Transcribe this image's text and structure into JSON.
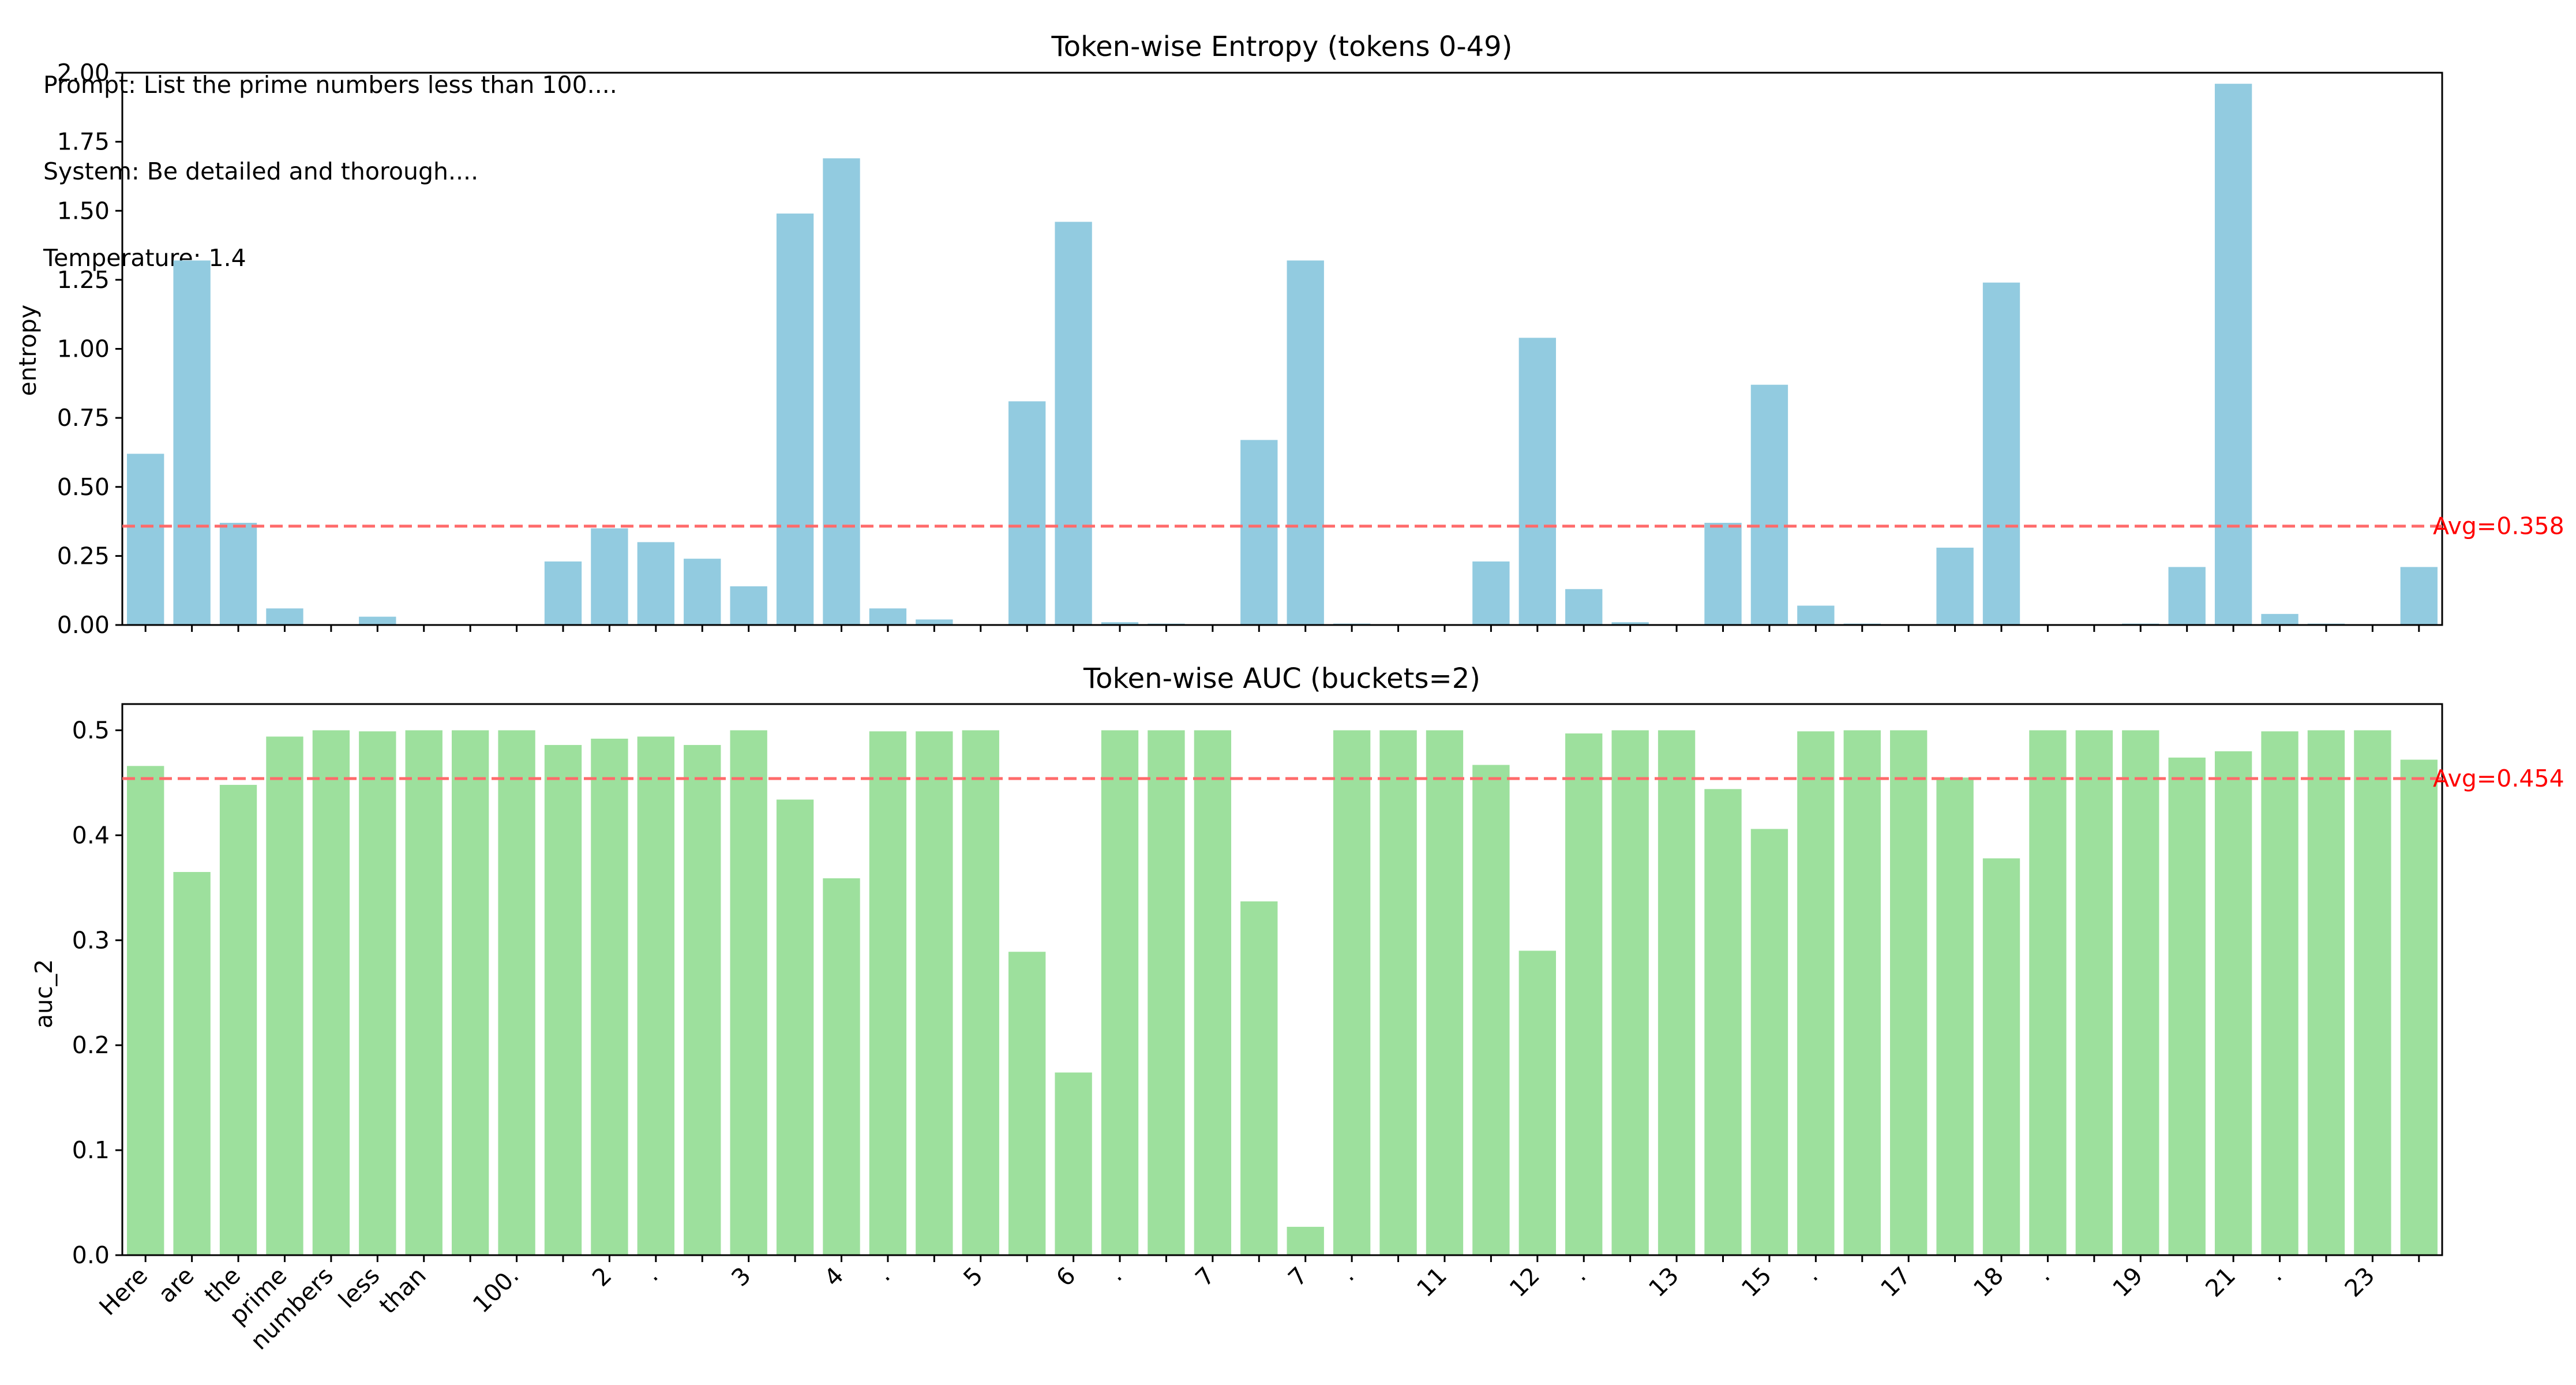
{
  "info": {
    "prompt": "Prompt: List the prime numbers less than 100....",
    "system": "System: Be detailed and thorough....",
    "temperature": "Temperature: 1.4"
  },
  "colors": {
    "entropy_bar": "#92cbe0",
    "auc_bar": "#9de09d",
    "avg_line": "#ff6b6b",
    "avg_text": "#ff0000"
  },
  "chart_data": [
    {
      "type": "bar",
      "title": "Token-wise Entropy (tokens 0-49)",
      "ylabel": "entropy",
      "xlabel": "",
      "ylim": [
        0,
        2.0
      ],
      "yticks": [
        "0.00",
        "0.25",
        "0.50",
        "0.75",
        "1.00",
        "1.25",
        "1.50",
        "1.75",
        "2.00"
      ],
      "values": [
        0.62,
        1.32,
        0.37,
        0.06,
        0.0,
        0.03,
        0.0,
        0.0,
        0.0,
        0.23,
        0.35,
        0.3,
        0.24,
        0.14,
        1.49,
        1.69,
        0.06,
        0.02,
        0.0,
        0.81,
        1.46,
        0.01,
        0.005,
        0.0,
        0.67,
        1.32,
        0.005,
        0.0,
        0.0,
        0.23,
        1.04,
        0.13,
        0.01,
        0.0,
        0.37,
        0.87,
        0.07,
        0.005,
        0.0,
        0.28,
        1.24,
        0.0,
        0.0,
        0.005,
        0.21,
        1.96,
        0.04,
        0.005,
        0.0,
        0.21
      ],
      "average_label": "Avg=0.358",
      "average": 0.358,
      "grid": false
    },
    {
      "type": "bar",
      "title": "Token-wise AUC (buckets=2)",
      "ylabel": "auc_2",
      "xlabel": "",
      "ylim": [
        0,
        0.525
      ],
      "yticks": [
        "0.0",
        "0.1",
        "0.2",
        "0.3",
        "0.4",
        "0.5"
      ],
      "values": [
        0.466,
        0.365,
        0.448,
        0.494,
        0.5,
        0.499,
        0.5,
        0.5,
        0.5,
        0.486,
        0.492,
        0.494,
        0.486,
        0.5,
        0.434,
        0.359,
        0.499,
        0.499,
        0.5,
        0.289,
        0.174,
        0.5,
        0.5,
        0.5,
        0.337,
        0.027,
        0.5,
        0.5,
        0.5,
        0.467,
        0.29,
        0.497,
        0.5,
        0.5,
        0.444,
        0.406,
        0.499,
        0.5,
        0.5,
        0.455,
        0.378,
        0.5,
        0.5,
        0.5,
        0.474,
        0.48,
        0.499,
        0.5,
        0.5,
        0.472
      ],
      "average_label": "Avg=0.454",
      "average": 0.454,
      "grid": false
    }
  ],
  "x_tick_labels": [
    "Here",
    "are",
    "the",
    "prime",
    "numbers",
    "less",
    "than",
    "",
    "100.",
    "",
    "2",
    ".",
    "",
    "3",
    "",
    "4",
    ".",
    "",
    "5",
    "",
    "6",
    ".",
    "",
    "7",
    "",
    "7",
    ".",
    "",
    "11",
    "",
    "12",
    ".",
    "",
    "13",
    "",
    "15",
    ".",
    "",
    "17",
    "",
    "18",
    ".",
    "",
    "19",
    "",
    "21",
    ".",
    "",
    "23",
    ""
  ]
}
